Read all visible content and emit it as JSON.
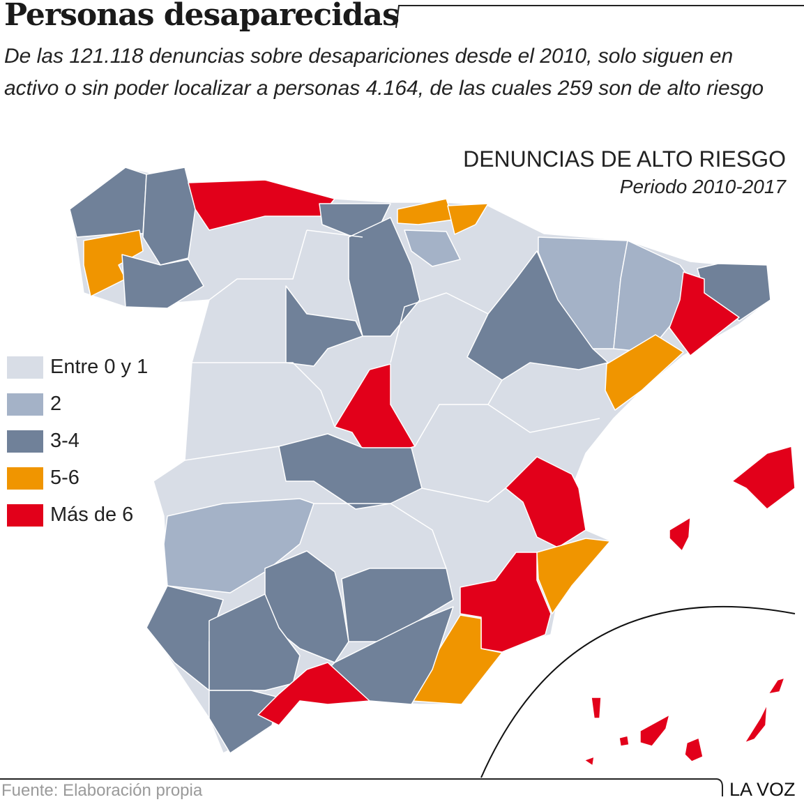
{
  "header": {
    "title": "Personas desaparecidas",
    "subtitle": "De las 121.118 denuncias sobre desapariciones desde el 2010, solo siguen en activo o sin poder localizar a personas 4.164, de las cuales 259 son de alto riesgo"
  },
  "map": {
    "title": "DENUNCIAS DE ALTO RIESGO",
    "period": "Periodo 2010-2017"
  },
  "legend": [
    {
      "label": "Entre 0 y 1",
      "color": "#d8dde6"
    },
    {
      "label": "2",
      "color": "#a4b2c7"
    },
    {
      "label": "3-4",
      "color": "#708199"
    },
    {
      "label": "5-6",
      "color": "#f09500"
    },
    {
      "label": "Más de 6",
      "color": "#e2001a"
    }
  ],
  "footer": {
    "source": "Fuente: Elaboración propia",
    "brand": "LA VOZ"
  }
}
